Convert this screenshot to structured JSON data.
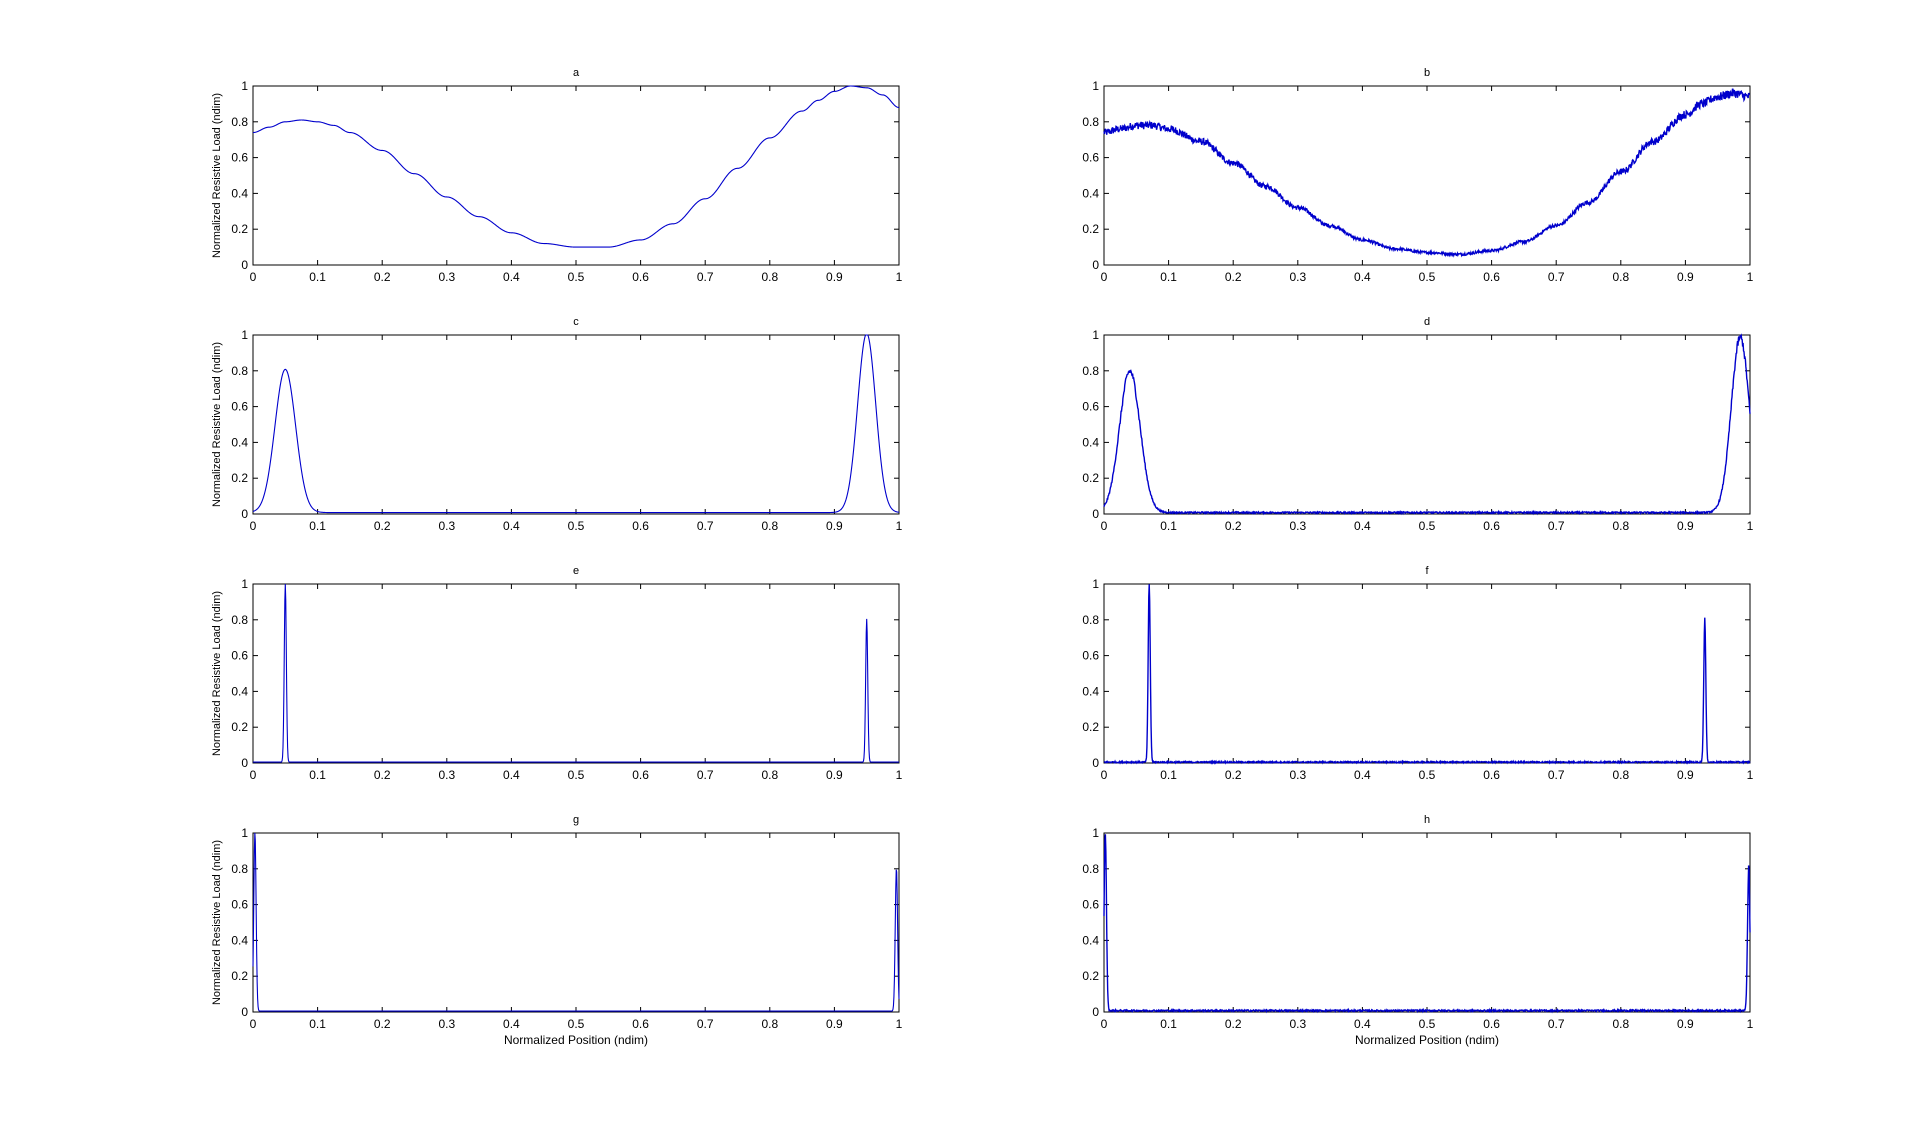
{
  "chart_data": [
    {
      "panel": "a",
      "type": "line",
      "title": "a",
      "xlabel": "",
      "ylabel": "Normalized Resistive Load (ndim)",
      "xlim": [
        0,
        1
      ],
      "ylim": [
        0,
        1
      ],
      "noisy": false,
      "series": [
        {
          "x": [
            0,
            0.025,
            0.05,
            0.075,
            0.1,
            0.125,
            0.15,
            0.2,
            0.25,
            0.3,
            0.35,
            0.4,
            0.45,
            0.5,
            0.53,
            0.55,
            0.6,
            0.65,
            0.7,
            0.75,
            0.8,
            0.85,
            0.875,
            0.9,
            0.925,
            0.95,
            0.975,
            1
          ],
          "y": [
            0.74,
            0.77,
            0.8,
            0.81,
            0.8,
            0.78,
            0.74,
            0.64,
            0.51,
            0.38,
            0.27,
            0.18,
            0.12,
            0.1,
            0.1,
            0.1,
            0.14,
            0.23,
            0.37,
            0.54,
            0.71,
            0.86,
            0.92,
            0.97,
            1.0,
            0.99,
            0.95,
            0.88
          ]
        }
      ]
    },
    {
      "panel": "b",
      "type": "line",
      "title": "b",
      "xlabel": "",
      "ylabel": "",
      "xlim": [
        0,
        1
      ],
      "ylim": [
        0,
        1
      ],
      "noisy": true,
      "series": [
        {
          "x": [
            0,
            0.025,
            0.05,
            0.075,
            0.1,
            0.15,
            0.2,
            0.25,
            0.3,
            0.35,
            0.4,
            0.45,
            0.5,
            0.55,
            0.6,
            0.65,
            0.7,
            0.75,
            0.8,
            0.85,
            0.9,
            0.925,
            0.95,
            0.975,
            1
          ],
          "y": [
            0.74,
            0.76,
            0.78,
            0.78,
            0.76,
            0.69,
            0.57,
            0.44,
            0.32,
            0.22,
            0.14,
            0.09,
            0.07,
            0.06,
            0.08,
            0.13,
            0.22,
            0.35,
            0.52,
            0.69,
            0.84,
            0.9,
            0.94,
            0.96,
            0.94
          ]
        }
      ]
    },
    {
      "panel": "c",
      "type": "line",
      "title": "c",
      "xlabel": "",
      "ylabel": "Normalized Resistive Load (ndim)",
      "xlim": [
        0,
        1
      ],
      "ylim": [
        0,
        1
      ],
      "noisy": false,
      "series": [
        {
          "gaussians": [
            {
              "center": 0.05,
              "amp": 0.8,
              "width": 0.016
            },
            {
              "center": 0.95,
              "amp": 1.0,
              "width": 0.014
            }
          ],
          "baseline": 0.008
        }
      ]
    },
    {
      "panel": "d",
      "type": "line",
      "title": "d",
      "xlabel": "",
      "ylabel": "",
      "xlim": [
        0,
        1
      ],
      "ylim": [
        0,
        1
      ],
      "noisy": true,
      "series": [
        {
          "gaussians": [
            {
              "center": 0.04,
              "amp": 0.79,
              "width": 0.016
            },
            {
              "center": 0.985,
              "amp": 0.98,
              "width": 0.014
            }
          ],
          "baseline": 0.008
        }
      ]
    },
    {
      "panel": "e",
      "type": "line",
      "title": "e",
      "xlabel": "",
      "ylabel": "Normalized Resistive Load (ndim)",
      "xlim": [
        0,
        1
      ],
      "ylim": [
        0,
        1
      ],
      "noisy": false,
      "series": [
        {
          "gaussians": [
            {
              "center": 0.05,
              "amp": 1.0,
              "width": 0.0016
            },
            {
              "center": 0.95,
              "amp": 0.8,
              "width": 0.0016
            }
          ],
          "baseline": 0.005
        }
      ]
    },
    {
      "panel": "f",
      "type": "line",
      "title": "f",
      "xlabel": "",
      "ylabel": "",
      "xlim": [
        0,
        1
      ],
      "ylim": [
        0,
        1
      ],
      "noisy": true,
      "series": [
        {
          "gaussians": [
            {
              "center": 0.07,
              "amp": 1.0,
              "width": 0.0016
            },
            {
              "center": 0.93,
              "amp": 0.8,
              "width": 0.0016
            }
          ],
          "baseline": 0.005
        }
      ]
    },
    {
      "panel": "g",
      "type": "line",
      "title": "g",
      "xlabel": "Normalized Position (ndim)",
      "ylabel": "Normalized Resistive Load (ndim)",
      "xlim": [
        0,
        1
      ],
      "ylim": [
        0,
        1
      ],
      "noisy": false,
      "series": [
        {
          "gaussians": [
            {
              "center": 0.003,
              "amp": 1.0,
              "width": 0.0018
            },
            {
              "center": 0.996,
              "amp": 0.8,
              "width": 0.0018
            }
          ],
          "baseline": 0.005
        }
      ]
    },
    {
      "panel": "h",
      "type": "line",
      "title": "h",
      "xlabel": "Normalized Position (ndim)",
      "ylabel": "",
      "xlim": [
        0,
        1
      ],
      "ylim": [
        0,
        1
      ],
      "noisy": true,
      "series": [
        {
          "gaussians": [
            {
              "center": 0.002,
              "amp": 1.0,
              "width": 0.0018
            },
            {
              "center": 0.998,
              "amp": 0.8,
              "width": 0.0018
            }
          ],
          "baseline": 0.008
        }
      ]
    }
  ],
  "xticks": [
    "0",
    "0.1",
    "0.2",
    "0.3",
    "0.4",
    "0.5",
    "0.6",
    "0.7",
    "0.8",
    "0.9",
    "1"
  ],
  "yticks": [
    "0",
    "0.2",
    "0.4",
    "0.6",
    "0.8",
    "1"
  ],
  "colors": {
    "line": "#0000cc",
    "axes": "#000000",
    "background": "#ffffff"
  }
}
